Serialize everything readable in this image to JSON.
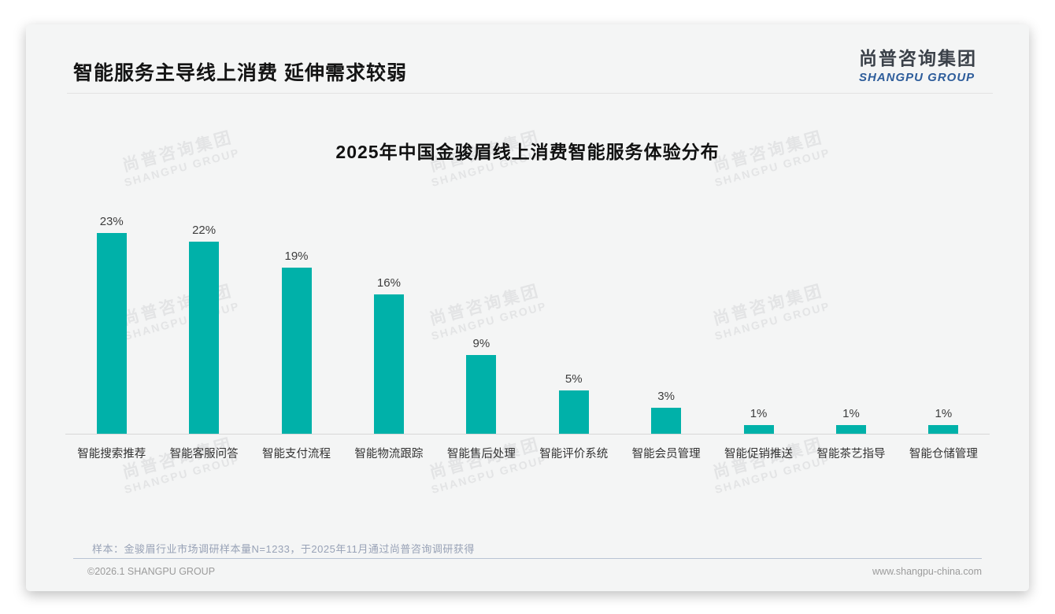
{
  "page": {
    "header_title": "智能服务主导线上消费 延伸需求较弱",
    "logo": {
      "cn": "尚普咨询集团",
      "en": "SHANGPU GROUP"
    },
    "watermark": {
      "cn": "尚普咨询集团",
      "en": "SHANGPU GROUP"
    },
    "footnote": "样本：金骏眉行业市场调研样本量N=1233，于2025年11月通过尚普咨询调研获得",
    "footer_left": "©2026.1 SHANGPU GROUP",
    "footer_right": "www.shangpu-china.com"
  },
  "chart_data": {
    "type": "bar",
    "title": "2025年中国金骏眉线上消费智能服务体验分布",
    "categories": [
      "智能搜索推荐",
      "智能客服问答",
      "智能支付流程",
      "智能物流跟踪",
      "智能售后处理",
      "智能评价系统",
      "智能会员管理",
      "智能促销推送",
      "智能茶艺指导",
      "智能仓储管理"
    ],
    "values": [
      23,
      22,
      19,
      16,
      9,
      5,
      3,
      1,
      1,
      1
    ],
    "value_labels": [
      "23%",
      "22%",
      "19%",
      "16%",
      "9%",
      "5%",
      "3%",
      "1%",
      "1%",
      "1%"
    ],
    "bar_color": "#00b1a9",
    "xlabel": "",
    "ylabel": "",
    "ylim": [
      0,
      25
    ],
    "grid": false,
    "legend": false,
    "axis_line_color": "#d8d8d8"
  }
}
